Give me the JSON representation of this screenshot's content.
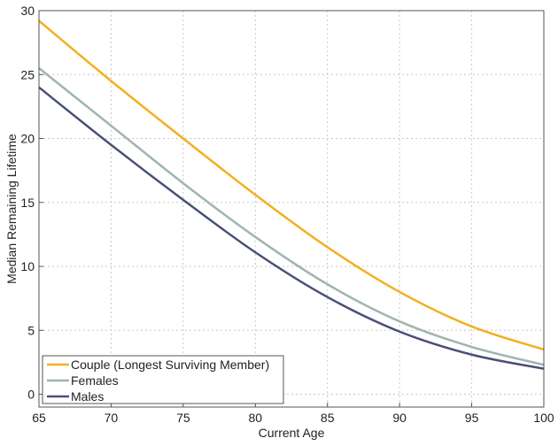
{
  "chart_data": {
    "type": "line",
    "title": "",
    "xlabel": "Current Age",
    "ylabel": "Median Remaining Lifetime",
    "xlim": [
      65,
      100
    ],
    "ylim": [
      -1,
      30
    ],
    "xticks": [
      65,
      70,
      75,
      80,
      85,
      90,
      95,
      100
    ],
    "yticks": [
      0,
      5,
      10,
      15,
      20,
      25,
      30
    ],
    "grid": true,
    "legend_position": "bottom-left",
    "x": [
      65,
      70,
      75,
      80,
      85,
      90,
      95,
      100
    ],
    "series": [
      {
        "name": "Couple (Longest Surviving Member)",
        "color": "#f2b01e",
        "values": [
          29.2,
          24.5,
          20.0,
          15.6,
          11.5,
          8.0,
          5.3,
          3.5
        ]
      },
      {
        "name": "Females",
        "color": "#9fb5ae",
        "values": [
          25.5,
          21.0,
          16.5,
          12.3,
          8.6,
          5.7,
          3.7,
          2.3
        ]
      },
      {
        "name": "Males",
        "color": "#4a4f78",
        "values": [
          24.0,
          19.5,
          15.2,
          11.1,
          7.6,
          4.9,
          3.1,
          2.0
        ]
      }
    ]
  }
}
